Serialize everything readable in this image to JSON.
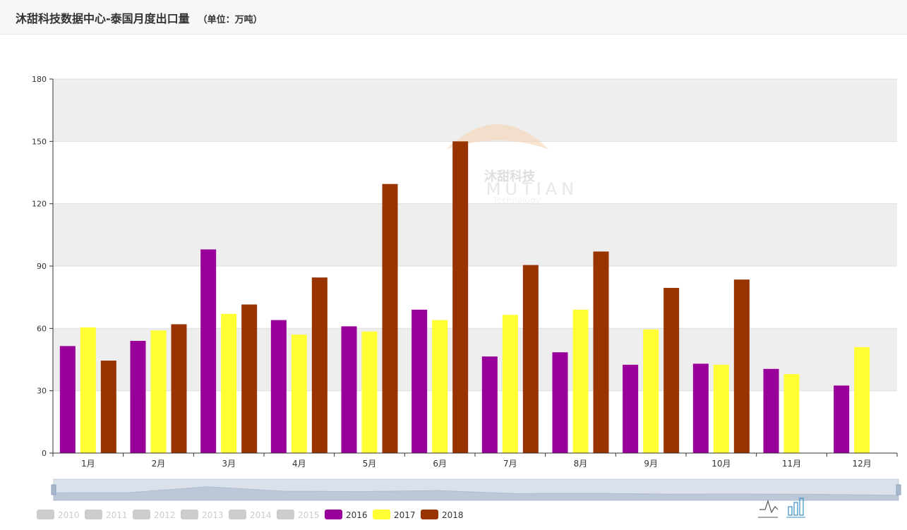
{
  "header": {
    "title": "沐甜科技数据中心-泰国月度出口量",
    "unit": "（单位：万吨）"
  },
  "watermark": {
    "brand_cn": "沐甜科技",
    "brand_en": "MUTIAN",
    "tagline": "Technology"
  },
  "colors": {
    "2016": "#990099",
    "2017": "#ffff33",
    "2018": "#993300",
    "inactive": "#cccccc",
    "band": "#eeeeee"
  },
  "toolbox": {
    "line_icon": "line-chart-icon",
    "bar_icon": "bar-chart-icon"
  },
  "chart_data": {
    "type": "bar",
    "title": "",
    "xlabel": "",
    "ylabel": "",
    "ylim": [
      0,
      180
    ],
    "yticks": [
      0,
      30,
      60,
      90,
      120,
      150,
      180
    ],
    "categories": [
      "1月",
      "2月",
      "3月",
      "4月",
      "5月",
      "6月",
      "7月",
      "8月",
      "9月",
      "10月",
      "11月",
      "12月"
    ],
    "series": [
      {
        "name": "2016",
        "values": [
          51.5,
          54,
          98,
          64,
          61,
          69,
          46.5,
          48.5,
          42.5,
          43,
          40.5,
          32.5
        ]
      },
      {
        "name": "2017",
        "values": [
          60.5,
          59,
          67,
          57,
          58.5,
          64,
          66.5,
          69,
          59.5,
          42.5,
          38,
          51
        ]
      },
      {
        "name": "2018",
        "values": [
          44.5,
          62,
          71.5,
          84.5,
          129.5,
          150,
          90.5,
          97,
          79.5,
          83.5,
          null,
          null
        ]
      }
    ],
    "legend": {
      "position": "bottom-left",
      "items": [
        {
          "name": "2010",
          "active": false
        },
        {
          "name": "2011",
          "active": false
        },
        {
          "name": "2012",
          "active": false
        },
        {
          "name": "2013",
          "active": false
        },
        {
          "name": "2014",
          "active": false
        },
        {
          "name": "2015",
          "active": false
        },
        {
          "name": "2016",
          "active": true
        },
        {
          "name": "2017",
          "active": true
        },
        {
          "name": "2018",
          "active": true
        }
      ]
    },
    "grid": true,
    "data_zoom": true
  }
}
